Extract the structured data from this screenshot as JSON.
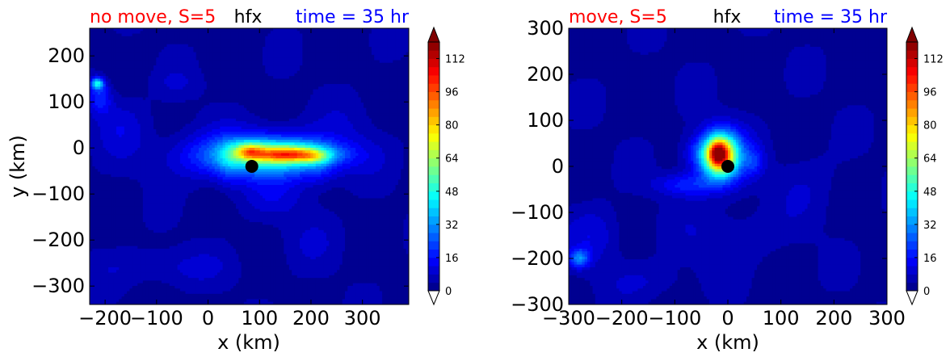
{
  "chart_data": [
    {
      "type": "heatmap",
      "variable": "hfx",
      "title_left": "no move, S=5",
      "title_center": "hfx",
      "title_right": "time = 35 hr",
      "xlabel": "x (km)",
      "ylabel": "y (km)",
      "xlim": [
        -230,
        390
      ],
      "ylim": [
        -340,
        260
      ],
      "xticks": [
        -200,
        -100,
        0,
        100,
        200,
        300
      ],
      "yticks": [
        -300,
        -200,
        -100,
        0,
        100,
        200
      ],
      "xtick_labels": [
        "−200",
        "−100",
        "0",
        "100",
        "200",
        "300"
      ],
      "ytick_labels": [
        "−300",
        "−200",
        "−100",
        "0",
        "100",
        "200"
      ],
      "center_marker": {
        "x": 85,
        "y": -40
      },
      "features": [
        {
          "x": 100,
          "y": -15,
          "sx": 160,
          "sy": 55,
          "v": 18
        },
        {
          "x": 120,
          "y": -20,
          "sx": 120,
          "sy": 42,
          "v": 24
        },
        {
          "x": 150,
          "y": -12,
          "sx": 95,
          "sy": 24,
          "v": 32
        },
        {
          "x": 80,
          "y": -5,
          "sx": 30,
          "sy": 20,
          "v": 22
        },
        {
          "x": 160,
          "y": -15,
          "sx": 62,
          "sy": 14,
          "v": 32
        },
        {
          "x": 205,
          "y": -20,
          "sx": 28,
          "sy": 14,
          "v": 12
        },
        {
          "x": 80,
          "y": -10,
          "sx": 22,
          "sy": 14,
          "v": 14
        },
        {
          "x": 40,
          "y": -30,
          "sx": 22,
          "sy": 50,
          "v": 8
        },
        {
          "x": 215,
          "y": -40,
          "sx": 30,
          "sy": 40,
          "v": 7
        },
        {
          "x": -215,
          "y": 140,
          "sx": 12,
          "sy": 12,
          "v": 38
        },
        {
          "x": -210,
          "y": 110,
          "sx": 22,
          "sy": 35,
          "v": 16
        },
        {
          "x": -170,
          "y": 50,
          "sx": 50,
          "sy": 60,
          "v": 7
        },
        {
          "x": 130,
          "y": -110,
          "sx": 70,
          "sy": 40,
          "v": 6
        },
        {
          "x": -80,
          "y": -260,
          "sx": 130,
          "sy": 40,
          "v": 6
        },
        {
          "x": 200,
          "y": -200,
          "sx": 60,
          "sy": 60,
          "v": 4
        },
        {
          "x": -60,
          "y": 140,
          "sx": 50,
          "sy": 30,
          "v": 4
        },
        {
          "x": 280,
          "y": 60,
          "sx": 60,
          "sy": 60,
          "v": 3
        }
      ]
    },
    {
      "type": "heatmap",
      "variable": "hfx",
      "title_left": "move, S=5",
      "title_center": "hfx",
      "title_right": "time = 35 hr",
      "xlabel": "x (km)",
      "ylabel": "",
      "xlim": [
        -300,
        300
      ],
      "ylim": [
        -300,
        300
      ],
      "xticks": [
        -300,
        -200,
        -100,
        0,
        100,
        200,
        300
      ],
      "yticks": [
        -300,
        -200,
        -100,
        0,
        100,
        200,
        300
      ],
      "xtick_labels": [
        "−300",
        "−200",
        "−100",
        "0",
        "100",
        "200",
        "300"
      ],
      "ytick_labels": [
        "−300",
        "−200",
        "−100",
        "0",
        "100",
        "200",
        "300"
      ],
      "center_marker": {
        "x": 0,
        "y": 0
      },
      "features": [
        {
          "x": -10,
          "y": 20,
          "sx": 55,
          "sy": 65,
          "v": 20
        },
        {
          "x": -15,
          "y": 25,
          "sx": 38,
          "sy": 48,
          "v": 30
        },
        {
          "x": -15,
          "y": 25,
          "sx": 26,
          "sy": 38,
          "v": 60
        },
        {
          "x": -20,
          "y": 30,
          "sx": 14,
          "sy": 24,
          "v": 25
        },
        {
          "x": -80,
          "y": -40,
          "sx": 60,
          "sy": 25,
          "v": 14
        },
        {
          "x": 50,
          "y": 10,
          "sx": 20,
          "sy": 30,
          "v": 10
        },
        {
          "x": -60,
          "y": 30,
          "sx": 25,
          "sy": 30,
          "v": 7
        },
        {
          "x": -280,
          "y": -200,
          "sx": 20,
          "sy": 20,
          "v": 25
        },
        {
          "x": -250,
          "y": -150,
          "sx": 50,
          "sy": 60,
          "v": 8
        },
        {
          "x": 0,
          "y": -150,
          "sx": 100,
          "sy": 60,
          "v": 5
        },
        {
          "x": -150,
          "y": -250,
          "sx": 80,
          "sy": 40,
          "v": 5
        },
        {
          "x": 150,
          "y": -50,
          "sx": 60,
          "sy": 80,
          "v": 4
        }
      ]
    }
  ],
  "colorbar": {
    "min": 0,
    "max": 120,
    "step": 4,
    "tick_values": [
      0,
      16,
      32,
      48,
      64,
      80,
      96,
      112
    ],
    "tick_labels": [
      "0",
      "16",
      "32",
      "48",
      "64",
      "80",
      "96",
      "112"
    ],
    "extend": "both"
  },
  "colors": {
    "title_left": "#ff0000",
    "title_center": "#000000",
    "title_right": "#0000ff",
    "marker": "#000000",
    "background_field": "#0000a0"
  }
}
